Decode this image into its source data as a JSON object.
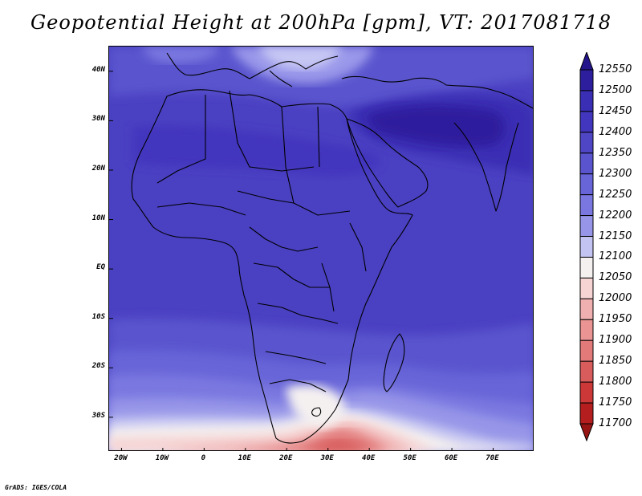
{
  "title": "Geopotential Height at 200hPa [gpm], VT: 2017081718",
  "credit": "GrADS: IGES/COLA",
  "map": {
    "projection": "lat-lon",
    "lon_range": [
      -23,
      80
    ],
    "lat_range": [
      -37,
      45
    ],
    "lat_labels": [
      {
        "lat": 40,
        "text": "40N"
      },
      {
        "lat": 30,
        "text": "30N"
      },
      {
        "lat": 20,
        "text": "20N"
      },
      {
        "lat": 10,
        "text": "10N"
      },
      {
        "lat": 0,
        "text": "EQ"
      },
      {
        "lat": -10,
        "text": "10S"
      },
      {
        "lat": -20,
        "text": "20S"
      },
      {
        "lat": -30,
        "text": "30S"
      }
    ],
    "lon_labels": [
      {
        "lon": -20,
        "text": "20W"
      },
      {
        "lon": -10,
        "text": "10W"
      },
      {
        "lon": 0,
        "text": "0"
      },
      {
        "lon": 10,
        "text": "10E"
      },
      {
        "lon": 20,
        "text": "20E"
      },
      {
        "lon": 30,
        "text": "30E"
      },
      {
        "lon": 40,
        "text": "40E"
      },
      {
        "lon": 50,
        "text": "50E"
      },
      {
        "lon": 60,
        "text": "60E"
      },
      {
        "lon": 70,
        "text": "70E"
      }
    ]
  },
  "colorbar": {
    "labels": [
      "12550",
      "12500",
      "12450",
      "12400",
      "12350",
      "12300",
      "12250",
      "12200",
      "12150",
      "12100",
      "12050",
      "12000",
      "11950",
      "11900",
      "11850",
      "11800",
      "11750",
      "11700"
    ],
    "colors": [
      "#24148c",
      "#2d1e9e",
      "#3a2eb4",
      "#4336be",
      "#4f46c6",
      "#5a55ce",
      "#6865d8",
      "#7a78e0",
      "#9695e8",
      "#c4c4f2",
      "#f4f0f0",
      "#f6d4d4",
      "#f0b0b0",
      "#ea9494",
      "#e27a7a",
      "#d85c5c",
      "#cc3838",
      "#b41e1e",
      "#961414"
    ]
  },
  "chart_data": {
    "type": "heatmap",
    "title": "Geopotential Height at 200hPa [gpm], VT: 2017081718",
    "units": "gpm",
    "level": "200hPa",
    "valid_time": "2017081718",
    "x_axis": "longitude",
    "y_axis": "latitude",
    "xlim": [
      -23,
      80
    ],
    "ylim": [
      -37,
      45
    ],
    "contour_levels": [
      11700,
      11750,
      11800,
      11850,
      11900,
      11950,
      12000,
      12050,
      12100,
      12150,
      12200,
      12250,
      12300,
      12350,
      12400,
      12450,
      12500,
      12550
    ],
    "field_description": "anticyclonic high over the Middle East (~12450-12500 gpm), ~12300-12400 across northern Africa, decreasing southward to ~11750-11800 south of South Africa",
    "latitude_profile_approx": [
      {
        "lat": 40,
        "value": 12250
      },
      {
        "lat": 30,
        "value": 12400
      },
      {
        "lat": 20,
        "value": 12400
      },
      {
        "lat": 10,
        "value": 12380
      },
      {
        "lat": 0,
        "value": 12360
      },
      {
        "lat": -10,
        "value": 12330
      },
      {
        "lat": -20,
        "value": 12250
      },
      {
        "lat": -25,
        "value": 12150
      },
      {
        "lat": -30,
        "value": 12050
      },
      {
        "lat": -35,
        "value": 11800
      }
    ]
  }
}
